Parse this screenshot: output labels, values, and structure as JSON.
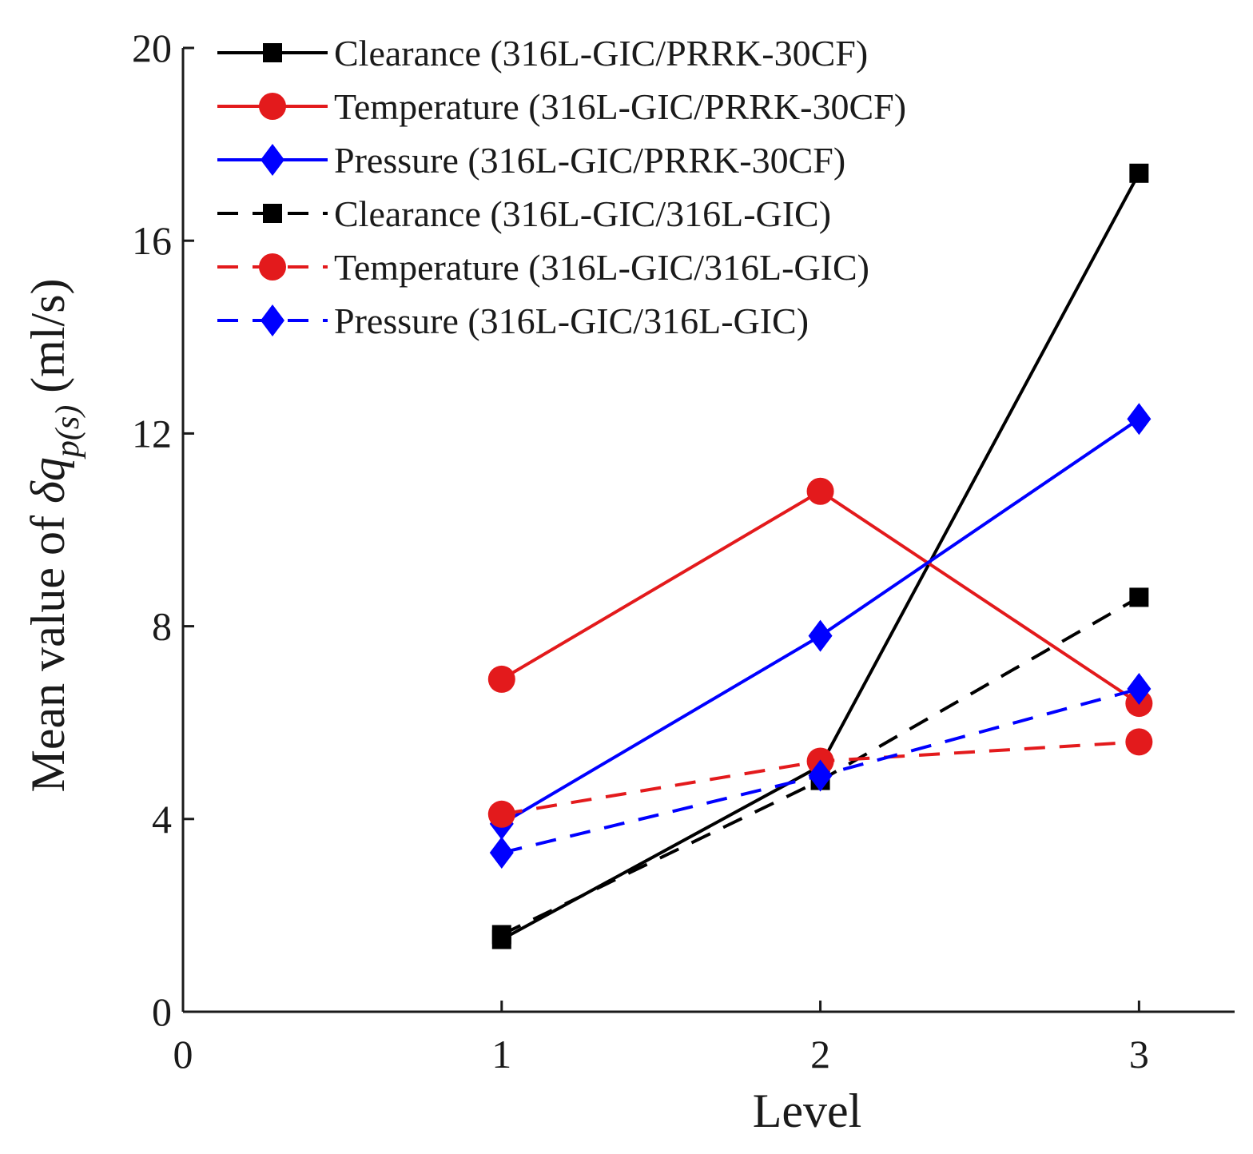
{
  "chart_data": {
    "type": "line",
    "title": "",
    "xlabel": "Level",
    "ylabel": {
      "prefix": "Mean value of ",
      "symbol": "δq",
      "subscript": "p(s)",
      "suffix": " (ml/s)"
    },
    "xlim": [
      0,
      3.3
    ],
    "ylim": [
      0,
      20
    ],
    "x_ticks": [
      0,
      1,
      2,
      3
    ],
    "y_ticks": [
      0,
      4,
      8,
      12,
      16,
      20
    ],
    "legend_position": "top-left",
    "grid": false,
    "x": [
      1,
      2,
      3
    ],
    "series": [
      {
        "name": "Clearance (316L-GIC/PRRK-30CF)",
        "color": "#000000",
        "dash": "solid",
        "marker": "square",
        "values": [
          1.5,
          5.1,
          17.4
        ]
      },
      {
        "name": "Temperature (316L-GIC/PRRK-30CF)",
        "color": "#e31a1c",
        "dash": "solid",
        "marker": "circle",
        "values": [
          6.9,
          10.8,
          6.4
        ]
      },
      {
        "name": "Pressure (316L-GIC/PRRK-30CF)",
        "color": "#0000ff",
        "dash": "solid",
        "marker": "diamond",
        "values": [
          3.9,
          7.8,
          12.3
        ]
      },
      {
        "name": "Clearance (316L-GIC/316L-GIC)",
        "color": "#000000",
        "dash": "dashed",
        "marker": "square",
        "values": [
          1.6,
          4.8,
          8.6
        ]
      },
      {
        "name": "Temperature (316L-GIC/316L-GIC)",
        "color": "#e31a1c",
        "dash": "dashed",
        "marker": "circle",
        "values": [
          4.1,
          5.2,
          5.6
        ]
      },
      {
        "name": "Pressure (316L-GIC/316L-GIC)",
        "color": "#0000ff",
        "dash": "dashed",
        "marker": "diamond",
        "values": [
          3.3,
          4.9,
          6.7
        ]
      }
    ]
  }
}
